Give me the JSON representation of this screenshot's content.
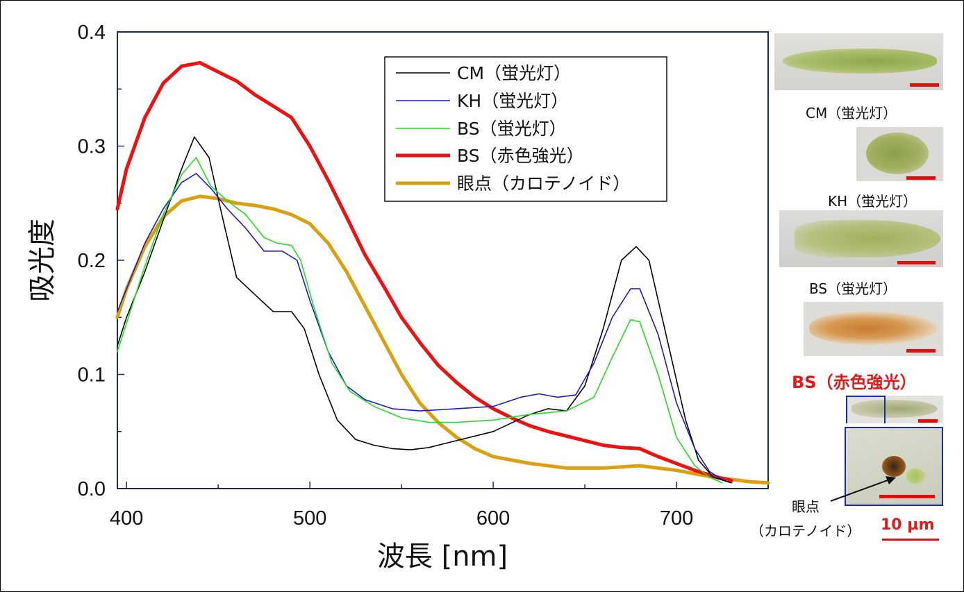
{
  "chart_data": {
    "type": "line",
    "xlabel": "波長 [nm]",
    "ylabel": "吸光度",
    "xlim": [
      395,
      750
    ],
    "ylim": [
      0.0,
      0.4
    ],
    "x_ticks": [
      "400",
      "500",
      "600",
      "700"
    ],
    "y_ticks": [
      "0.0",
      "0.1",
      "0.2",
      "0.3",
      "0.4"
    ],
    "grid": false,
    "legend_position": "top-right",
    "series": [
      {
        "name": "CM（蛍光灯）",
        "color": "#000000",
        "width": 1.6,
        "x": [
          395,
          400,
          410,
          420,
          430,
          437,
          445,
          452,
          460,
          470,
          480,
          490,
          497,
          505,
          515,
          525,
          535,
          545,
          555,
          565,
          580,
          600,
          620,
          630,
          640,
          650,
          660,
          670,
          678,
          685,
          695,
          705,
          712,
          720,
          730
        ],
        "y": [
          0.125,
          0.15,
          0.19,
          0.235,
          0.28,
          0.308,
          0.29,
          0.24,
          0.185,
          0.17,
          0.155,
          0.155,
          0.14,
          0.1,
          0.06,
          0.043,
          0.038,
          0.035,
          0.034,
          0.036,
          0.042,
          0.05,
          0.065,
          0.07,
          0.068,
          0.09,
          0.14,
          0.2,
          0.212,
          0.2,
          0.13,
          0.06,
          0.025,
          0.01,
          0.005
        ]
      },
      {
        "name": "KH（蛍光灯）",
        "color": "#1a1acc",
        "width": 1.6,
        "x": [
          395,
          400,
          410,
          420,
          430,
          438,
          446,
          455,
          465,
          475,
          485,
          493,
          500,
          510,
          520,
          530,
          545,
          560,
          580,
          600,
          615,
          625,
          635,
          645,
          655,
          665,
          675,
          680,
          690,
          700,
          710,
          718,
          725
        ],
        "y": [
          0.155,
          0.175,
          0.215,
          0.245,
          0.268,
          0.276,
          0.263,
          0.245,
          0.228,
          0.208,
          0.208,
          0.2,
          0.165,
          0.12,
          0.09,
          0.078,
          0.07,
          0.068,
          0.07,
          0.072,
          0.08,
          0.083,
          0.08,
          0.082,
          0.11,
          0.15,
          0.175,
          0.175,
          0.135,
          0.075,
          0.035,
          0.015,
          0.008
        ]
      },
      {
        "name": "BS（蛍光灯）",
        "color": "#22dd22",
        "width": 1.6,
        "x": [
          395,
          400,
          410,
          420,
          430,
          438,
          446,
          455,
          465,
          475,
          482,
          490,
          495,
          502,
          512,
          522,
          535,
          550,
          565,
          580,
          600,
          620,
          640,
          655,
          665,
          675,
          680,
          690,
          700,
          710,
          718,
          725
        ],
        "y": [
          0.12,
          0.145,
          0.195,
          0.24,
          0.275,
          0.29,
          0.265,
          0.252,
          0.24,
          0.22,
          0.215,
          0.213,
          0.2,
          0.16,
          0.11,
          0.085,
          0.072,
          0.062,
          0.058,
          0.058,
          0.06,
          0.065,
          0.068,
          0.08,
          0.115,
          0.148,
          0.146,
          0.1,
          0.045,
          0.02,
          0.01,
          0.005
        ]
      },
      {
        "name": "BS（赤色強光）",
        "color": "#ee1111",
        "width": 5,
        "x": [
          395,
          400,
          410,
          420,
          430,
          440,
          450,
          460,
          470,
          480,
          490,
          500,
          510,
          520,
          530,
          540,
          550,
          560,
          570,
          580,
          590,
          600,
          610,
          620,
          630,
          640,
          650,
          660,
          670,
          680,
          690,
          700,
          710,
          720,
          730
        ],
        "y": [
          0.245,
          0.28,
          0.325,
          0.355,
          0.37,
          0.373,
          0.365,
          0.357,
          0.345,
          0.335,
          0.325,
          0.3,
          0.27,
          0.238,
          0.205,
          0.178,
          0.15,
          0.128,
          0.108,
          0.093,
          0.08,
          0.07,
          0.062,
          0.055,
          0.05,
          0.046,
          0.042,
          0.038,
          0.036,
          0.035,
          0.028,
          0.022,
          0.016,
          0.011,
          0.007
        ]
      },
      {
        "name": "眼点（カロテノイド）",
        "color": "#dba010",
        "width": 5,
        "x": [
          395,
          400,
          410,
          420,
          430,
          440,
          450,
          460,
          470,
          480,
          490,
          500,
          510,
          520,
          530,
          540,
          550,
          560,
          570,
          580,
          590,
          600,
          620,
          640,
          660,
          680,
          700,
          720,
          740,
          750
        ],
        "y": [
          0.15,
          0.175,
          0.212,
          0.238,
          0.252,
          0.256,
          0.254,
          0.25,
          0.248,
          0.245,
          0.24,
          0.232,
          0.215,
          0.19,
          0.16,
          0.13,
          0.1,
          0.075,
          0.058,
          0.045,
          0.035,
          0.028,
          0.022,
          0.018,
          0.018,
          0.02,
          0.016,
          0.01,
          0.006,
          0.005
        ]
      }
    ]
  },
  "side_panel": {
    "captions": [
      "CM（蛍光灯）",
      "KH（蛍光灯）",
      "BS（蛍光灯）",
      "BS（赤色強光）"
    ],
    "eyespot_label_line1": "眼点",
    "eyespot_label_line2": "（カロテノイド）",
    "scale_label": "10 µm",
    "bar_color": "#e01010",
    "frame_color": "#1a2aa0"
  }
}
